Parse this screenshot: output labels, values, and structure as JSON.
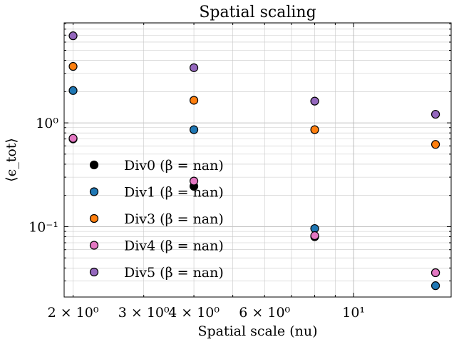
{
  "chart_data": {
    "type": "scatter",
    "title": "Spatial scaling",
    "xlabel": "Spatial scale (nu)",
    "ylabel": "⟨ϵ_tot⟩",
    "xscale": "log",
    "yscale": "log",
    "xlim": [
      1.9,
      17.5
    ],
    "ylim": [
      0.021,
      9.2
    ],
    "grid": "on (major and minor)",
    "legend_position": "lower-left",
    "x_ticks": [
      {
        "value": 2,
        "label": "2 × 10⁰"
      },
      {
        "value": 3,
        "label": "3 × 10⁰"
      },
      {
        "value": 4,
        "label": "4 × 10⁰"
      },
      {
        "value": 6,
        "label": "6 × 10⁰"
      },
      {
        "value": 10,
        "label": "10¹"
      }
    ],
    "y_ticks": [
      {
        "value": 0.1,
        "label": "10⁻¹"
      },
      {
        "value": 1,
        "label": "10⁰"
      }
    ],
    "series": [
      {
        "name": "Div0 (β = nan)",
        "color": "#000000",
        "x": [
          2,
          4,
          8,
          16
        ],
        "y": [
          0.7,
          0.245,
          0.08,
          0.036
        ]
      },
      {
        "name": "Div1 (β = nan)",
        "color": "#1f77b4",
        "x": [
          2,
          4,
          8,
          16
        ],
        "y": [
          2.05,
          0.86,
          0.096,
          0.027
        ]
      },
      {
        "name": "Div3 (β = nan)",
        "color": "#ff7f0e",
        "x": [
          2,
          4,
          8,
          16
        ],
        "y": [
          3.5,
          1.65,
          0.86,
          0.62
        ]
      },
      {
        "name": "Div4 (β = nan)",
        "color": "#e377c2",
        "x": [
          2,
          4,
          8,
          16
        ],
        "y": [
          0.71,
          0.275,
          0.082,
          0.036
        ]
      },
      {
        "name": "Div5 (β = nan)",
        "color": "#9467bd",
        "x": [
          2,
          4,
          8,
          16
        ],
        "y": [
          6.9,
          3.4,
          1.62,
          1.21
        ]
      }
    ]
  }
}
